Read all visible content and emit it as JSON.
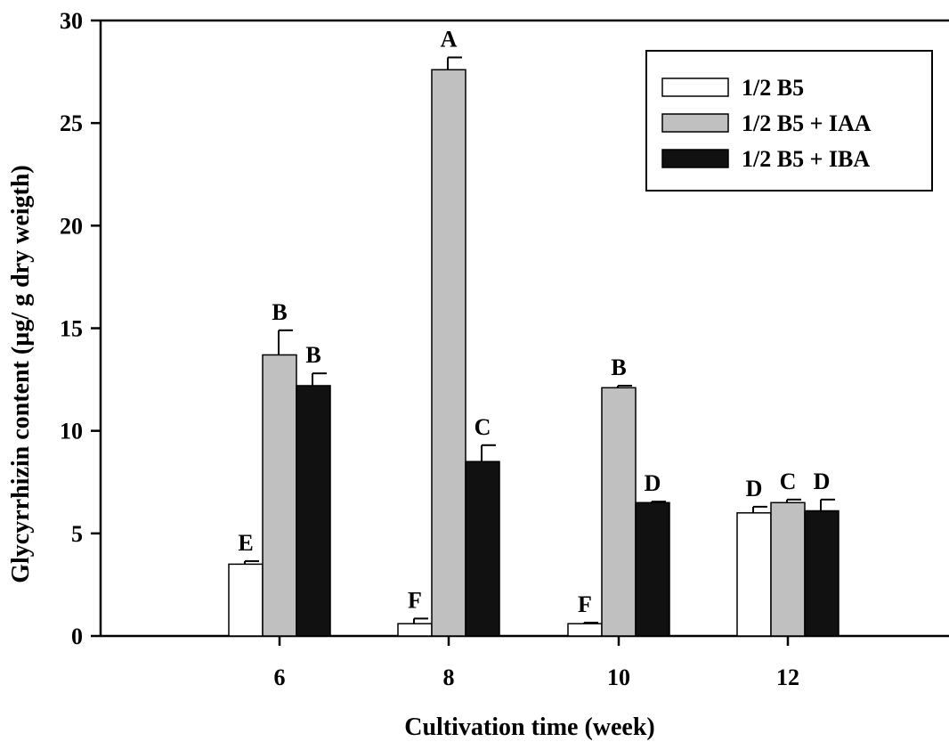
{
  "chart_data": {
    "type": "bar",
    "title": "",
    "xlabel": "Cultivation time (week)",
    "ylabel": "Glycyrrhizin content (µg/ g dry weigth)",
    "ylim": [
      0,
      30
    ],
    "yticks": [
      "0",
      "5",
      "10",
      "15",
      "20",
      "25",
      "30"
    ],
    "categories": [
      "6",
      "8",
      "10",
      "12"
    ],
    "grid": false,
    "legend_position": "top-right",
    "series": [
      {
        "name": "1/2 B5",
        "color": "#ffffff",
        "values": [
          3.5,
          0.6,
          0.6,
          6.0
        ],
        "errors": [
          0.15,
          0.25,
          0.05,
          0.3
        ],
        "letters": [
          "E",
          "F",
          "F",
          "D"
        ]
      },
      {
        "name": "1/2 B5 + IAA",
        "color": "#c0c0c0",
        "values": [
          13.7,
          27.6,
          12.1,
          6.5
        ],
        "errors": [
          1.2,
          0.6,
          0.1,
          0.15
        ],
        "letters": [
          "B",
          "A",
          "B",
          "C"
        ]
      },
      {
        "name": "1/2 B5 + IBA",
        "color": "#111111",
        "values": [
          12.2,
          8.5,
          6.5,
          6.1
        ],
        "errors": [
          0.6,
          0.8,
          0.05,
          0.55
        ],
        "letters": [
          "B",
          "C",
          "D",
          "D"
        ]
      }
    ]
  }
}
